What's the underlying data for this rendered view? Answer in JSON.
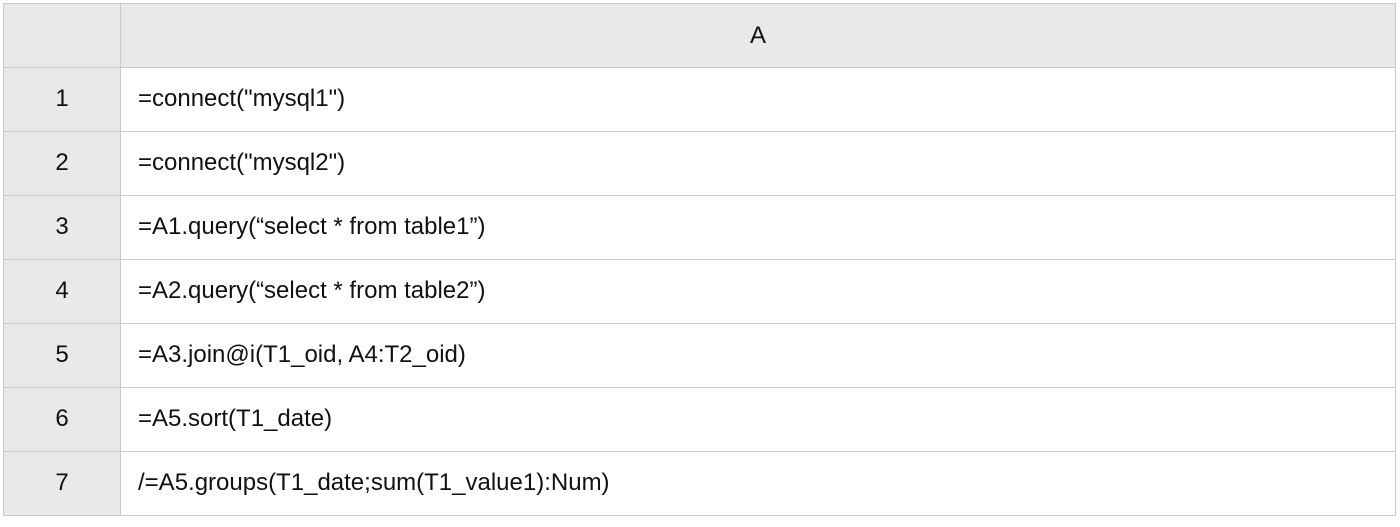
{
  "sheet": {
    "column_headers": [
      "A"
    ],
    "rows": [
      {
        "row_number": "1",
        "cell_A": "=connect(\"mysql1\")"
      },
      {
        "row_number": "2",
        "cell_A": "=connect(\"mysql2\")"
      },
      {
        "row_number": "3",
        "cell_A": "=A1.query(“select * from table1”)"
      },
      {
        "row_number": "4",
        "cell_A": "=A2.query(“select * from table2”)"
      },
      {
        "row_number": "5",
        "cell_A": "=A3.join@i(T1_oid, A4:T2_oid)"
      },
      {
        "row_number": "6",
        "cell_A": "=A5.sort(T1_date)"
      },
      {
        "row_number": "7",
        "cell_A": "/=A5.groups(T1_date;sum(T1_value1):Num)"
      }
    ]
  },
  "colors": {
    "header_background": "#e9e9e9",
    "grid_line": "#c9c9c9",
    "cell_background": "#ffffff",
    "text": "#111111"
  }
}
